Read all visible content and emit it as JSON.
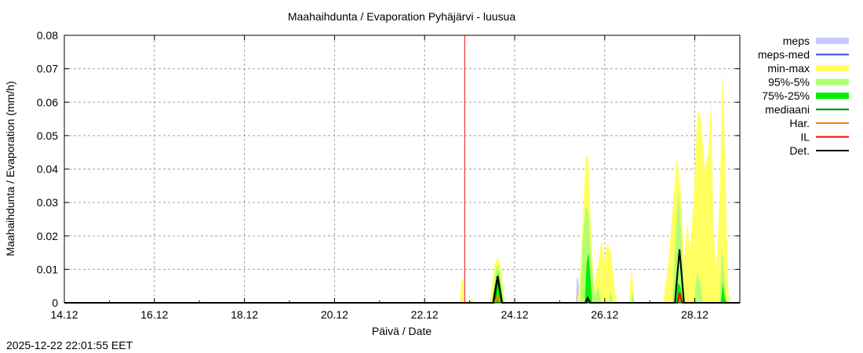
{
  "timestamp": "2025-12-22 22:01:55 EET",
  "chart_data": {
    "type": "area",
    "title": "Maahaihdunta / Evaporation  Pyhäjärvi - luusua",
    "xlabel": "Päivä / Date",
    "ylabel": "Maahaihdunta / Evaporation (mm/h)",
    "x_unit": "days since 14.12 00:00",
    "xlim": [
      0,
      15
    ],
    "ylim": [
      0,
      0.08
    ],
    "grid": true,
    "legend_position": "right-outside",
    "xticks": [
      {
        "v": 0,
        "label": "14.12"
      },
      {
        "v": 2,
        "label": "16.12"
      },
      {
        "v": 4,
        "label": "18.12"
      },
      {
        "v": 6,
        "label": "20.12"
      },
      {
        "v": 8,
        "label": "22.12"
      },
      {
        "v": 10,
        "label": "24.12"
      },
      {
        "v": 12,
        "label": "26.12"
      },
      {
        "v": 14,
        "label": "28.12"
      }
    ],
    "yticks": [
      {
        "v": 0,
        "label": "0"
      },
      {
        "v": 0.01,
        "label": "0.01"
      },
      {
        "v": 0.02,
        "label": "0.02"
      },
      {
        "v": 0.03,
        "label": "0.03"
      },
      {
        "v": 0.04,
        "label": "0.04"
      },
      {
        "v": 0.05,
        "label": "0.05"
      },
      {
        "v": 0.06,
        "label": "0.06"
      },
      {
        "v": 0.07,
        "label": "0.07"
      },
      {
        "v": 0.08,
        "label": "0.08"
      }
    ],
    "now_marker": {
      "x": 8.89,
      "color": "#ff0000"
    },
    "series": [
      {
        "name": "meps",
        "kind": "band",
        "color": "#c8c8ff",
        "points": [
          [
            11.36,
            0
          ],
          [
            11.38,
            0.008
          ],
          [
            11.42,
            0.006
          ],
          [
            11.45,
            0
          ]
        ]
      },
      {
        "name": "meps-med",
        "kind": "line",
        "color": "#4040e0",
        "points": []
      },
      {
        "name": "min-max",
        "kind": "band",
        "color": "#ffff60",
        "points": [
          [
            8.78,
            0
          ],
          [
            8.82,
            0.007
          ],
          [
            8.86,
            0.007
          ],
          [
            8.88,
            0
          ],
          [
            8.98,
            0
          ],
          [
            8.99,
            0.001
          ],
          [
            9.09,
            0.001
          ],
          [
            9.1,
            0
          ],
          [
            9.45,
            0
          ],
          [
            9.55,
            0.011
          ],
          [
            9.62,
            0.014
          ],
          [
            9.69,
            0.011
          ],
          [
            9.78,
            0
          ],
          [
            9.96,
            0
          ],
          [
            9.98,
            0.002
          ],
          [
            10.0,
            0
          ],
          [
            11.4,
            0
          ],
          [
            11.46,
            0.01
          ],
          [
            11.53,
            0.03
          ],
          [
            11.58,
            0.044
          ],
          [
            11.64,
            0.043
          ],
          [
            11.7,
            0.02
          ],
          [
            11.76,
            0.005
          ],
          [
            11.84,
            0.01
          ],
          [
            11.93,
            0.019
          ],
          [
            11.98,
            0.012
          ],
          [
            12.06,
            0.018
          ],
          [
            12.14,
            0.015
          ],
          [
            12.22,
            0.004
          ],
          [
            12.28,
            0
          ],
          [
            12.54,
            0
          ],
          [
            12.6,
            0.011
          ],
          [
            12.66,
            0
          ],
          [
            13.3,
            0
          ],
          [
            13.4,
            0.01
          ],
          [
            13.52,
            0.03
          ],
          [
            13.6,
            0.044
          ],
          [
            13.68,
            0.035
          ],
          [
            13.76,
            0.012
          ],
          [
            13.83,
            0.024
          ],
          [
            13.9,
            0.016
          ],
          [
            13.97,
            0.03
          ],
          [
            14.06,
            0.058
          ],
          [
            14.14,
            0.055
          ],
          [
            14.22,
            0.04
          ],
          [
            14.3,
            0.045
          ],
          [
            14.36,
            0.06
          ],
          [
            14.42,
            0.02
          ],
          [
            14.48,
            0.01
          ],
          [
            14.56,
            0.035
          ],
          [
            14.62,
            0.07
          ],
          [
            14.68,
            0.04
          ],
          [
            14.74,
            0.005
          ],
          [
            14.78,
            0
          ]
        ]
      },
      {
        "name": "95%-5%",
        "kind": "band",
        "color": "#b0ff70",
        "points": [
          [
            9.5,
            0
          ],
          [
            9.58,
            0.009
          ],
          [
            9.62,
            0.012
          ],
          [
            9.68,
            0.008
          ],
          [
            9.76,
            0
          ],
          [
            11.45,
            0
          ],
          [
            11.52,
            0.02
          ],
          [
            11.58,
            0.029
          ],
          [
            11.64,
            0.027
          ],
          [
            11.7,
            0.012
          ],
          [
            11.78,
            0.002
          ],
          [
            11.86,
            0.005
          ],
          [
            11.92,
            0
          ],
          [
            12.1,
            0
          ],
          [
            12.13,
            0.004
          ],
          [
            12.18,
            0
          ],
          [
            12.58,
            0
          ],
          [
            12.62,
            0.003
          ],
          [
            12.66,
            0
          ],
          [
            13.5,
            0
          ],
          [
            13.58,
            0.02
          ],
          [
            13.64,
            0.034
          ],
          [
            13.7,
            0.02
          ],
          [
            13.78,
            0
          ],
          [
            13.98,
            0
          ],
          [
            14.05,
            0.009
          ],
          [
            14.12,
            0.006
          ],
          [
            14.18,
            0
          ],
          [
            14.55,
            0
          ],
          [
            14.61,
            0.016
          ],
          [
            14.68,
            0.004
          ],
          [
            14.72,
            0
          ]
        ]
      },
      {
        "name": "75%-25%",
        "kind": "band",
        "color": "#00f000",
        "points": [
          [
            9.55,
            0
          ],
          [
            9.6,
            0.007
          ],
          [
            9.64,
            0.009
          ],
          [
            9.7,
            0.004
          ],
          [
            9.74,
            0
          ],
          [
            11.56,
            0
          ],
          [
            11.6,
            0.012
          ],
          [
            11.64,
            0.015
          ],
          [
            11.68,
            0.008
          ],
          [
            11.72,
            0
          ],
          [
            13.58,
            0
          ],
          [
            13.62,
            0.006
          ],
          [
            13.68,
            0.005
          ],
          [
            13.74,
            0
          ],
          [
            14.58,
            0
          ],
          [
            14.62,
            0.006
          ],
          [
            14.66,
            0.002
          ],
          [
            14.7,
            0
          ]
        ]
      },
      {
        "name": "mediaani",
        "kind": "line",
        "color": "#008000",
        "points": [
          [
            0,
            0
          ],
          [
            9.55,
            0
          ],
          [
            9.62,
            0.007
          ],
          [
            9.72,
            0
          ],
          [
            11.6,
            0
          ],
          [
            11.62,
            0.001
          ],
          [
            11.66,
            0
          ],
          [
            13.62,
            0
          ],
          [
            13.66,
            0.003
          ],
          [
            13.72,
            0
          ],
          [
            15,
            0
          ]
        ]
      },
      {
        "name": "Har.",
        "kind": "line",
        "color": "#ff8000",
        "points": [
          [
            9.56,
            0
          ],
          [
            9.62,
            0.002
          ],
          [
            9.68,
            0
          ]
        ]
      },
      {
        "name": "IL",
        "kind": "line",
        "color": "#ff0000",
        "points": [
          [
            13.62,
            0
          ],
          [
            13.66,
            0.003
          ],
          [
            13.7,
            0.001
          ],
          [
            13.74,
            0
          ]
        ]
      },
      {
        "name": "Det.",
        "kind": "line",
        "color": "#000000",
        "points": [
          [
            0,
            0
          ],
          [
            9.52,
            0
          ],
          [
            9.62,
            0.008
          ],
          [
            9.72,
            0
          ],
          [
            11.57,
            0
          ],
          [
            11.62,
            0.0015
          ],
          [
            11.68,
            0
          ],
          [
            13.56,
            0
          ],
          [
            13.66,
            0.016
          ],
          [
            13.76,
            0
          ],
          [
            15,
            0
          ]
        ]
      }
    ]
  }
}
